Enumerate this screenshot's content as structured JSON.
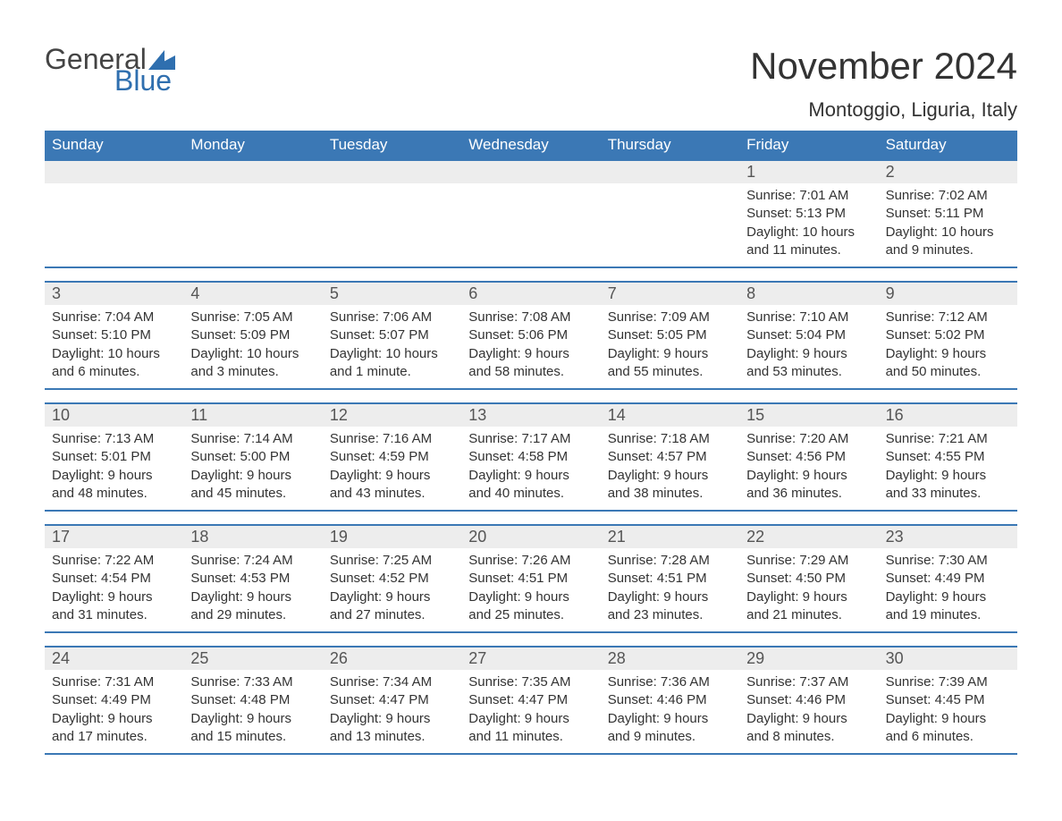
{
  "brand": {
    "general": "General",
    "blue": "Blue",
    "flag_color": "#2f6faf"
  },
  "title": "November 2024",
  "location": "Montoggio, Liguria, Italy",
  "colors": {
    "header_bg": "#3b78b5",
    "header_text": "#ffffff",
    "daynum_bg": "#ededed",
    "row_border": "#3b78b5",
    "body_bg": "#ffffff",
    "text": "#333333"
  },
  "typography": {
    "title_fontsize": 42,
    "location_fontsize": 22,
    "weekday_fontsize": 17,
    "body_fontsize": 15
  },
  "weekdays": [
    "Sunday",
    "Monday",
    "Tuesday",
    "Wednesday",
    "Thursday",
    "Friday",
    "Saturday"
  ],
  "weeks": [
    [
      {
        "n": "",
        "sunrise": "",
        "sunset": "",
        "daylight": ""
      },
      {
        "n": "",
        "sunrise": "",
        "sunset": "",
        "daylight": ""
      },
      {
        "n": "",
        "sunrise": "",
        "sunset": "",
        "daylight": ""
      },
      {
        "n": "",
        "sunrise": "",
        "sunset": "",
        "daylight": ""
      },
      {
        "n": "",
        "sunrise": "",
        "sunset": "",
        "daylight": ""
      },
      {
        "n": "1",
        "sunrise": "Sunrise: 7:01 AM",
        "sunset": "Sunset: 5:13 PM",
        "daylight": "Daylight: 10 hours and 11 minutes."
      },
      {
        "n": "2",
        "sunrise": "Sunrise: 7:02 AM",
        "sunset": "Sunset: 5:11 PM",
        "daylight": "Daylight: 10 hours and 9 minutes."
      }
    ],
    [
      {
        "n": "3",
        "sunrise": "Sunrise: 7:04 AM",
        "sunset": "Sunset: 5:10 PM",
        "daylight": "Daylight: 10 hours and 6 minutes."
      },
      {
        "n": "4",
        "sunrise": "Sunrise: 7:05 AM",
        "sunset": "Sunset: 5:09 PM",
        "daylight": "Daylight: 10 hours and 3 minutes."
      },
      {
        "n": "5",
        "sunrise": "Sunrise: 7:06 AM",
        "sunset": "Sunset: 5:07 PM",
        "daylight": "Daylight: 10 hours and 1 minute."
      },
      {
        "n": "6",
        "sunrise": "Sunrise: 7:08 AM",
        "sunset": "Sunset: 5:06 PM",
        "daylight": "Daylight: 9 hours and 58 minutes."
      },
      {
        "n": "7",
        "sunrise": "Sunrise: 7:09 AM",
        "sunset": "Sunset: 5:05 PM",
        "daylight": "Daylight: 9 hours and 55 minutes."
      },
      {
        "n": "8",
        "sunrise": "Sunrise: 7:10 AM",
        "sunset": "Sunset: 5:04 PM",
        "daylight": "Daylight: 9 hours and 53 minutes."
      },
      {
        "n": "9",
        "sunrise": "Sunrise: 7:12 AM",
        "sunset": "Sunset: 5:02 PM",
        "daylight": "Daylight: 9 hours and 50 minutes."
      }
    ],
    [
      {
        "n": "10",
        "sunrise": "Sunrise: 7:13 AM",
        "sunset": "Sunset: 5:01 PM",
        "daylight": "Daylight: 9 hours and 48 minutes."
      },
      {
        "n": "11",
        "sunrise": "Sunrise: 7:14 AM",
        "sunset": "Sunset: 5:00 PM",
        "daylight": "Daylight: 9 hours and 45 minutes."
      },
      {
        "n": "12",
        "sunrise": "Sunrise: 7:16 AM",
        "sunset": "Sunset: 4:59 PM",
        "daylight": "Daylight: 9 hours and 43 minutes."
      },
      {
        "n": "13",
        "sunrise": "Sunrise: 7:17 AM",
        "sunset": "Sunset: 4:58 PM",
        "daylight": "Daylight: 9 hours and 40 minutes."
      },
      {
        "n": "14",
        "sunrise": "Sunrise: 7:18 AM",
        "sunset": "Sunset: 4:57 PM",
        "daylight": "Daylight: 9 hours and 38 minutes."
      },
      {
        "n": "15",
        "sunrise": "Sunrise: 7:20 AM",
        "sunset": "Sunset: 4:56 PM",
        "daylight": "Daylight: 9 hours and 36 minutes."
      },
      {
        "n": "16",
        "sunrise": "Sunrise: 7:21 AM",
        "sunset": "Sunset: 4:55 PM",
        "daylight": "Daylight: 9 hours and 33 minutes."
      }
    ],
    [
      {
        "n": "17",
        "sunrise": "Sunrise: 7:22 AM",
        "sunset": "Sunset: 4:54 PM",
        "daylight": "Daylight: 9 hours and 31 minutes."
      },
      {
        "n": "18",
        "sunrise": "Sunrise: 7:24 AM",
        "sunset": "Sunset: 4:53 PM",
        "daylight": "Daylight: 9 hours and 29 minutes."
      },
      {
        "n": "19",
        "sunrise": "Sunrise: 7:25 AM",
        "sunset": "Sunset: 4:52 PM",
        "daylight": "Daylight: 9 hours and 27 minutes."
      },
      {
        "n": "20",
        "sunrise": "Sunrise: 7:26 AM",
        "sunset": "Sunset: 4:51 PM",
        "daylight": "Daylight: 9 hours and 25 minutes."
      },
      {
        "n": "21",
        "sunrise": "Sunrise: 7:28 AM",
        "sunset": "Sunset: 4:51 PM",
        "daylight": "Daylight: 9 hours and 23 minutes."
      },
      {
        "n": "22",
        "sunrise": "Sunrise: 7:29 AM",
        "sunset": "Sunset: 4:50 PM",
        "daylight": "Daylight: 9 hours and 21 minutes."
      },
      {
        "n": "23",
        "sunrise": "Sunrise: 7:30 AM",
        "sunset": "Sunset: 4:49 PM",
        "daylight": "Daylight: 9 hours and 19 minutes."
      }
    ],
    [
      {
        "n": "24",
        "sunrise": "Sunrise: 7:31 AM",
        "sunset": "Sunset: 4:49 PM",
        "daylight": "Daylight: 9 hours and 17 minutes."
      },
      {
        "n": "25",
        "sunrise": "Sunrise: 7:33 AM",
        "sunset": "Sunset: 4:48 PM",
        "daylight": "Daylight: 9 hours and 15 minutes."
      },
      {
        "n": "26",
        "sunrise": "Sunrise: 7:34 AM",
        "sunset": "Sunset: 4:47 PM",
        "daylight": "Daylight: 9 hours and 13 minutes."
      },
      {
        "n": "27",
        "sunrise": "Sunrise: 7:35 AM",
        "sunset": "Sunset: 4:47 PM",
        "daylight": "Daylight: 9 hours and 11 minutes."
      },
      {
        "n": "28",
        "sunrise": "Sunrise: 7:36 AM",
        "sunset": "Sunset: 4:46 PM",
        "daylight": "Daylight: 9 hours and 9 minutes."
      },
      {
        "n": "29",
        "sunrise": "Sunrise: 7:37 AM",
        "sunset": "Sunset: 4:46 PM",
        "daylight": "Daylight: 9 hours and 8 minutes."
      },
      {
        "n": "30",
        "sunrise": "Sunrise: 7:39 AM",
        "sunset": "Sunset: 4:45 PM",
        "daylight": "Daylight: 9 hours and 6 minutes."
      }
    ]
  ]
}
